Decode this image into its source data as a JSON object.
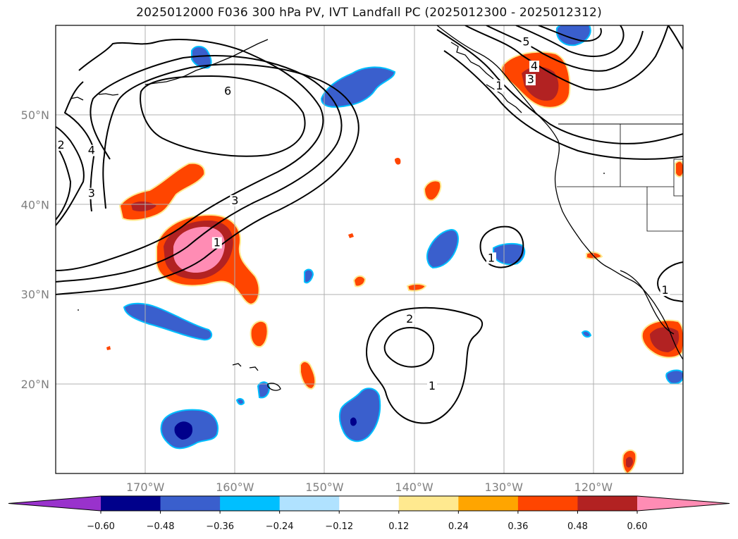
{
  "title": "2025012000 F036 300 hPa PV, IVT Landfall PC (2025012300 - 2025012312)",
  "map": {
    "projection": "PlateCarree",
    "lon_range": [
      -180,
      -110
    ],
    "lat_range": [
      10,
      60
    ],
    "gridlines": true,
    "lat_ticks": [
      {
        "value": 20,
        "label": "20°N"
      },
      {
        "value": 30,
        "label": "30°N"
      },
      {
        "value": 40,
        "label": "40°N"
      },
      {
        "value": 50,
        "label": "50°N"
      }
    ],
    "lon_ticks": [
      {
        "value": -170,
        "label": "170°W"
      },
      {
        "value": -160,
        "label": "160°W"
      },
      {
        "value": -150,
        "label": "150°W"
      },
      {
        "value": -140,
        "label": "140°W"
      },
      {
        "value": -130,
        "label": "130°W"
      },
      {
        "value": -120,
        "label": "120°W"
      }
    ],
    "pv_contour_labels": [
      {
        "text": "6",
        "lon": -160.8,
        "lat": 52.4
      },
      {
        "text": "4",
        "lon": -176.0,
        "lat": 45.8
      },
      {
        "text": "3",
        "lon": -176.0,
        "lat": 41.0
      },
      {
        "text": "2",
        "lon": -179.4,
        "lat": 46.4
      },
      {
        "text": "3",
        "lon": -160.0,
        "lat": 40.2
      },
      {
        "text": "1",
        "lon": -162.0,
        "lat": 35.5
      },
      {
        "text": "5",
        "lon": -127.5,
        "lat": 57.9
      },
      {
        "text": "4",
        "lon": -126.6,
        "lat": 55.2
      },
      {
        "text": "3",
        "lon": -127.0,
        "lat": 53.7
      },
      {
        "text": "1",
        "lon": -130.5,
        "lat": 53.0
      },
      {
        "text": "2",
        "lon": -140.5,
        "lat": 27.0
      },
      {
        "text": "1",
        "lon": -138.0,
        "lat": 19.5
      },
      {
        "text": "1",
        "lon": -131.4,
        "lat": 33.8
      },
      {
        "text": "1",
        "lon": -112.0,
        "lat": 30.2
      }
    ]
  },
  "colorbar": {
    "ticks": [
      "−0.60",
      "−0.48",
      "−0.36",
      "−0.24",
      "−0.12",
      "0.12",
      "0.24",
      "0.36",
      "0.48",
      "0.60"
    ],
    "colors": [
      "#9932cc",
      "#00008b",
      "#3a5fcd",
      "#00bfff",
      "#b0e2ff",
      "#ffffff",
      "#ffe98f",
      "#ffa500",
      "#ff4500",
      "#b22222",
      "#ff8cb4"
    ]
  }
}
